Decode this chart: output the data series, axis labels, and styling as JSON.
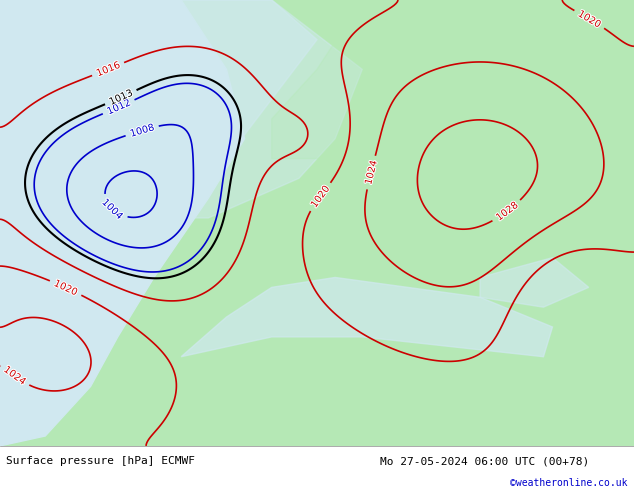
{
  "title_left": "Surface pressure [hPa] ECMWF",
  "title_right": "Mo 27-05-2024 06:00 UTC (00+78)",
  "credit": "©weatheronline.co.uk",
  "credit_color": "#0000cc",
  "background_land": "#b5e8b5",
  "background_sea": "#d0e8f0",
  "background_gray": "#c8c8c8",
  "footer_bg": "#ffffff",
  "footer_text_color": "#000000",
  "fig_width": 6.34,
  "fig_height": 4.9,
  "dpi": 100,
  "contour_color_black": "#000000",
  "contour_color_red": "#cc0000",
  "contour_color_blue": "#0000cc",
  "label_fontsize": 7,
  "footer_fontsize": 8,
  "credit_fontsize": 7
}
